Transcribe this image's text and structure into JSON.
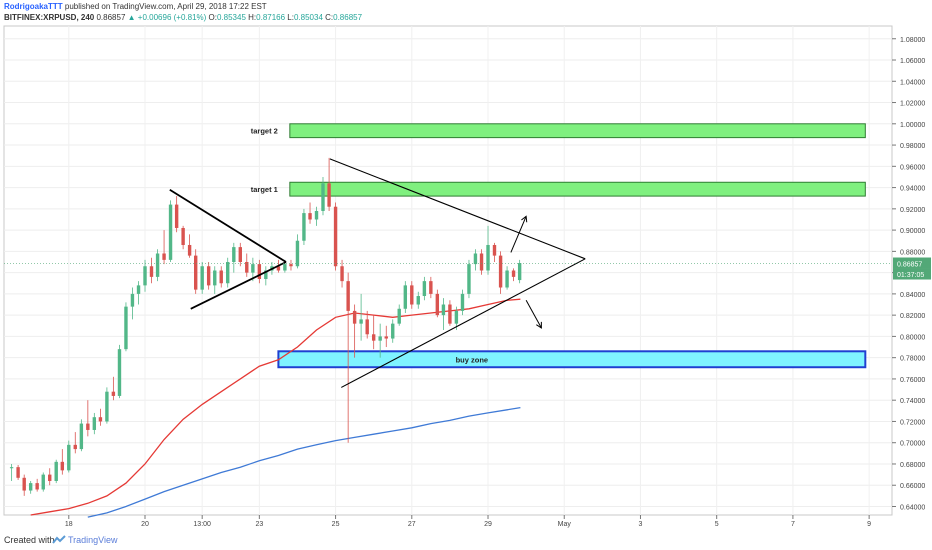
{
  "header": {
    "author": "RodrigoakaTTT",
    "published": "published on TradingView.com, April 29, 2018 17:22 EST",
    "symbol": "BITFINEX:XRPUSD, 240",
    "last": "0.86857",
    "change": "+0.00696 (+0.81%)",
    "ohlc": {
      "o_label": "O:",
      "o": "0.85345",
      "h_label": "H:",
      "h": "0.87166",
      "l_label": "L:",
      "l": "0.85034",
      "c_label": "C:",
      "c": "0.86857"
    }
  },
  "footer": {
    "created_with": "Created with",
    "brand": "TradingView",
    "logo_icon": "tradingview-logo-icon"
  },
  "colors": {
    "up": "#26a69a",
    "down": "#ef5350",
    "up_candle": "#52b788",
    "down_candle": "#d9534f",
    "ma_red": "#e53935",
    "ma_blue": "#3f7ad6",
    "target_fill": "#7ff07f",
    "buy_fill": "#7ff3ff",
    "buy_border": "#1f3fd1",
    "price_badge": "#52a877"
  },
  "chart_data": {
    "type": "candlestick",
    "symbol": "BITFINEX:XRPUSD",
    "timeframe": "240",
    "y_range": [
      0.632,
      1.092
    ],
    "y_ticks": [
      "0.64000",
      "0.66000",
      "0.68000",
      "0.70000",
      "0.72000",
      "0.74000",
      "0.76000",
      "0.78000",
      "0.80000",
      "0.82000",
      "0.84000",
      "0.86000",
      "0.88000",
      "0.90000",
      "0.92000",
      "0.94000",
      "0.96000",
      "0.98000",
      "1.00000",
      "1.02000",
      "1.04000",
      "1.06000",
      "1.08000"
    ],
    "x_range": [
      16.3,
      39.6
    ],
    "x_ticks": [
      {
        "t": 18,
        "label": "18"
      },
      {
        "t": 20,
        "label": "20"
      },
      {
        "t": 21.5,
        "label": "13:00"
      },
      {
        "t": 23,
        "label": "23"
      },
      {
        "t": 25,
        "label": "25"
      },
      {
        "t": 27,
        "label": "27"
      },
      {
        "t": 29,
        "label": "29"
      },
      {
        "t": 31,
        "label": "May"
      },
      {
        "t": 33,
        "label": "3"
      },
      {
        "t": 35,
        "label": "5"
      },
      {
        "t": 37,
        "label": "7"
      },
      {
        "t": 39,
        "label": "9"
      }
    ],
    "last_price_label": "0.86857",
    "countdown_label": "01:37:05",
    "candles": [
      {
        "t": 16.5,
        "o": 0.676,
        "h": 0.68,
        "l": 0.664,
        "c": 0.677
      },
      {
        "t": 16.67,
        "o": 0.677,
        "h": 0.679,
        "l": 0.665,
        "c": 0.667
      },
      {
        "t": 16.83,
        "o": 0.667,
        "h": 0.67,
        "l": 0.65,
        "c": 0.655
      },
      {
        "t": 17.0,
        "o": 0.655,
        "h": 0.664,
        "l": 0.652,
        "c": 0.662
      },
      {
        "t": 17.17,
        "o": 0.662,
        "h": 0.666,
        "l": 0.654,
        "c": 0.656
      },
      {
        "t": 17.33,
        "o": 0.656,
        "h": 0.672,
        "l": 0.654,
        "c": 0.67
      },
      {
        "t": 17.5,
        "o": 0.67,
        "h": 0.676,
        "l": 0.66,
        "c": 0.664
      },
      {
        "t": 17.67,
        "o": 0.664,
        "h": 0.684,
        "l": 0.662,
        "c": 0.682
      },
      {
        "t": 17.83,
        "o": 0.682,
        "h": 0.694,
        "l": 0.67,
        "c": 0.674
      },
      {
        "t": 18.0,
        "o": 0.674,
        "h": 0.702,
        "l": 0.672,
        "c": 0.698
      },
      {
        "t": 18.17,
        "o": 0.698,
        "h": 0.71,
        "l": 0.69,
        "c": 0.694
      },
      {
        "t": 18.33,
        "o": 0.694,
        "h": 0.722,
        "l": 0.692,
        "c": 0.718
      },
      {
        "t": 18.5,
        "o": 0.718,
        "h": 0.74,
        "l": 0.706,
        "c": 0.712
      },
      {
        "t": 18.67,
        "o": 0.712,
        "h": 0.728,
        "l": 0.708,
        "c": 0.724
      },
      {
        "t": 18.83,
        "o": 0.724,
        "h": 0.732,
        "l": 0.716,
        "c": 0.72
      },
      {
        "t": 19.0,
        "o": 0.72,
        "h": 0.752,
        "l": 0.718,
        "c": 0.748
      },
      {
        "t": 19.17,
        "o": 0.748,
        "h": 0.762,
        "l": 0.74,
        "c": 0.744
      },
      {
        "t": 19.33,
        "o": 0.744,
        "h": 0.792,
        "l": 0.742,
        "c": 0.788
      },
      {
        "t": 19.5,
        "o": 0.788,
        "h": 0.832,
        "l": 0.786,
        "c": 0.828
      },
      {
        "t": 19.67,
        "o": 0.828,
        "h": 0.846,
        "l": 0.816,
        "c": 0.84
      },
      {
        "t": 19.83,
        "o": 0.84,
        "h": 0.852,
        "l": 0.83,
        "c": 0.848
      },
      {
        "t": 20.0,
        "o": 0.848,
        "h": 0.872,
        "l": 0.842,
        "c": 0.866
      },
      {
        "t": 20.17,
        "o": 0.866,
        "h": 0.874,
        "l": 0.85,
        "c": 0.856
      },
      {
        "t": 20.33,
        "o": 0.856,
        "h": 0.882,
        "l": 0.852,
        "c": 0.878
      },
      {
        "t": 20.5,
        "o": 0.878,
        "h": 0.9,
        "l": 0.868,
        "c": 0.872
      },
      {
        "t": 20.67,
        "o": 0.872,
        "h": 0.928,
        "l": 0.87,
        "c": 0.924
      },
      {
        "t": 20.83,
        "o": 0.924,
        "h": 0.932,
        "l": 0.898,
        "c": 0.902
      },
      {
        "t": 21.0,
        "o": 0.902,
        "h": 0.904,
        "l": 0.882,
        "c": 0.886
      },
      {
        "t": 21.17,
        "o": 0.886,
        "h": 0.896,
        "l": 0.874,
        "c": 0.876
      },
      {
        "t": 21.33,
        "o": 0.876,
        "h": 0.882,
        "l": 0.84,
        "c": 0.844
      },
      {
        "t": 21.5,
        "o": 0.844,
        "h": 0.87,
        "l": 0.84,
        "c": 0.866
      },
      {
        "t": 21.67,
        "o": 0.866,
        "h": 0.87,
        "l": 0.844,
        "c": 0.848
      },
      {
        "t": 21.83,
        "o": 0.848,
        "h": 0.866,
        "l": 0.84,
        "c": 0.862
      },
      {
        "t": 22.0,
        "o": 0.862,
        "h": 0.866,
        "l": 0.846,
        "c": 0.85
      },
      {
        "t": 22.17,
        "o": 0.85,
        "h": 0.874,
        "l": 0.846,
        "c": 0.87
      },
      {
        "t": 22.33,
        "o": 0.87,
        "h": 0.888,
        "l": 0.86,
        "c": 0.884
      },
      {
        "t": 22.5,
        "o": 0.884,
        "h": 0.888,
        "l": 0.866,
        "c": 0.87
      },
      {
        "t": 22.67,
        "o": 0.87,
        "h": 0.878,
        "l": 0.856,
        "c": 0.86
      },
      {
        "t": 22.83,
        "o": 0.86,
        "h": 0.874,
        "l": 0.852,
        "c": 0.868
      },
      {
        "t": 23.0,
        "o": 0.868,
        "h": 0.872,
        "l": 0.85,
        "c": 0.854
      },
      {
        "t": 23.17,
        "o": 0.854,
        "h": 0.866,
        "l": 0.848,
        "c": 0.862
      },
      {
        "t": 23.33,
        "o": 0.862,
        "h": 0.87,
        "l": 0.858,
        "c": 0.866
      },
      {
        "t": 23.5,
        "o": 0.866,
        "h": 0.872,
        "l": 0.86,
        "c": 0.862
      },
      {
        "t": 23.67,
        "o": 0.862,
        "h": 0.872,
        "l": 0.86,
        "c": 0.868
      },
      {
        "t": 23.83,
        "o": 0.868,
        "h": 0.872,
        "l": 0.862,
        "c": 0.866
      },
      {
        "t": 24.0,
        "o": 0.866,
        "h": 0.896,
        "l": 0.864,
        "c": 0.89
      },
      {
        "t": 24.17,
        "o": 0.89,
        "h": 0.92,
        "l": 0.886,
        "c": 0.916
      },
      {
        "t": 24.33,
        "o": 0.916,
        "h": 0.926,
        "l": 0.906,
        "c": 0.91
      },
      {
        "t": 24.5,
        "o": 0.91,
        "h": 0.922,
        "l": 0.904,
        "c": 0.918
      },
      {
        "t": 24.67,
        "o": 0.918,
        "h": 0.95,
        "l": 0.914,
        "c": 0.944
      },
      {
        "t": 24.83,
        "o": 0.944,
        "h": 0.968,
        "l": 0.918,
        "c": 0.922
      },
      {
        "t": 25.0,
        "o": 0.922,
        "h": 0.926,
        "l": 0.862,
        "c": 0.866
      },
      {
        "t": 25.17,
        "o": 0.866,
        "h": 0.872,
        "l": 0.846,
        "c": 0.852
      },
      {
        "t": 25.33,
        "o": 0.852,
        "h": 0.86,
        "l": 0.7,
        "c": 0.824
      },
      {
        "t": 25.5,
        "o": 0.824,
        "h": 0.83,
        "l": 0.78,
        "c": 0.812
      },
      {
        "t": 25.67,
        "o": 0.812,
        "h": 0.84,
        "l": 0.796,
        "c": 0.816
      },
      {
        "t": 25.83,
        "o": 0.816,
        "h": 0.824,
        "l": 0.798,
        "c": 0.802
      },
      {
        "t": 26.0,
        "o": 0.802,
        "h": 0.82,
        "l": 0.788,
        "c": 0.796
      },
      {
        "t": 26.17,
        "o": 0.796,
        "h": 0.812,
        "l": 0.78,
        "c": 0.8
      },
      {
        "t": 26.33,
        "o": 0.8,
        "h": 0.81,
        "l": 0.79,
        "c": 0.798
      },
      {
        "t": 26.5,
        "o": 0.798,
        "h": 0.816,
        "l": 0.794,
        "c": 0.812
      },
      {
        "t": 26.67,
        "o": 0.812,
        "h": 0.83,
        "l": 0.81,
        "c": 0.826
      },
      {
        "t": 26.83,
        "o": 0.826,
        "h": 0.852,
        "l": 0.822,
        "c": 0.848
      },
      {
        "t": 27.0,
        "o": 0.848,
        "h": 0.852,
        "l": 0.826,
        "c": 0.83
      },
      {
        "t": 27.17,
        "o": 0.83,
        "h": 0.842,
        "l": 0.826,
        "c": 0.838
      },
      {
        "t": 27.33,
        "o": 0.838,
        "h": 0.856,
        "l": 0.834,
        "c": 0.852
      },
      {
        "t": 27.5,
        "o": 0.852,
        "h": 0.856,
        "l": 0.836,
        "c": 0.84
      },
      {
        "t": 27.67,
        "o": 0.84,
        "h": 0.844,
        "l": 0.818,
        "c": 0.82
      },
      {
        "t": 27.83,
        "o": 0.82,
        "h": 0.836,
        "l": 0.806,
        "c": 0.83
      },
      {
        "t": 28.0,
        "o": 0.83,
        "h": 0.834,
        "l": 0.81,
        "c": 0.812
      },
      {
        "t": 28.17,
        "o": 0.812,
        "h": 0.828,
        "l": 0.806,
        "c": 0.824
      },
      {
        "t": 28.33,
        "o": 0.824,
        "h": 0.844,
        "l": 0.82,
        "c": 0.84
      },
      {
        "t": 28.5,
        "o": 0.84,
        "h": 0.872,
        "l": 0.836,
        "c": 0.868
      },
      {
        "t": 28.67,
        "o": 0.868,
        "h": 0.882,
        "l": 0.862,
        "c": 0.878
      },
      {
        "t": 28.83,
        "o": 0.878,
        "h": 0.882,
        "l": 0.858,
        "c": 0.862
      },
      {
        "t": 29.0,
        "o": 0.862,
        "h": 0.904,
        "l": 0.858,
        "c": 0.886
      },
      {
        "t": 29.17,
        "o": 0.886,
        "h": 0.888,
        "l": 0.87,
        "c": 0.876
      },
      {
        "t": 29.33,
        "o": 0.876,
        "h": 0.88,
        "l": 0.84,
        "c": 0.846
      },
      {
        "t": 29.5,
        "o": 0.846,
        "h": 0.866,
        "l": 0.844,
        "c": 0.862
      },
      {
        "t": 29.67,
        "o": 0.862,
        "h": 0.864,
        "l": 0.852,
        "c": 0.856
      },
      {
        "t": 29.83,
        "o": 0.853,
        "h": 0.872,
        "l": 0.85,
        "c": 0.869
      }
    ],
    "moving_averages": [
      {
        "color": "red",
        "points": [
          [
            17.0,
            0.632
          ],
          [
            17.5,
            0.635
          ],
          [
            18.0,
            0.638
          ],
          [
            18.5,
            0.643
          ],
          [
            19.0,
            0.65
          ],
          [
            19.5,
            0.662
          ],
          [
            20.0,
            0.68
          ],
          [
            20.5,
            0.703
          ],
          [
            21.0,
            0.722
          ],
          [
            21.5,
            0.736
          ],
          [
            22.0,
            0.748
          ],
          [
            22.5,
            0.76
          ],
          [
            23.0,
            0.772
          ],
          [
            23.5,
            0.778
          ],
          [
            24.0,
            0.79
          ],
          [
            24.5,
            0.806
          ],
          [
            25.0,
            0.818
          ],
          [
            25.5,
            0.822
          ],
          [
            26.0,
            0.82
          ],
          [
            26.5,
            0.818
          ],
          [
            27.0,
            0.82
          ],
          [
            27.5,
            0.822
          ],
          [
            28.0,
            0.824
          ],
          [
            28.5,
            0.826
          ],
          [
            29.0,
            0.83
          ],
          [
            29.5,
            0.834
          ],
          [
            29.85,
            0.835
          ]
        ]
      },
      {
        "color": "blue",
        "points": [
          [
            18.5,
            0.63
          ],
          [
            19.0,
            0.634
          ],
          [
            19.5,
            0.64
          ],
          [
            20.0,
            0.647
          ],
          [
            20.5,
            0.654
          ],
          [
            21.0,
            0.66
          ],
          [
            21.5,
            0.666
          ],
          [
            22.0,
            0.672
          ],
          [
            22.5,
            0.677
          ],
          [
            23.0,
            0.683
          ],
          [
            23.5,
            0.688
          ],
          [
            24.0,
            0.694
          ],
          [
            24.5,
            0.698
          ],
          [
            25.0,
            0.702
          ],
          [
            25.5,
            0.705
          ],
          [
            26.0,
            0.708
          ],
          [
            26.5,
            0.711
          ],
          [
            27.0,
            0.714
          ],
          [
            27.5,
            0.718
          ],
          [
            28.0,
            0.721
          ],
          [
            28.5,
            0.725
          ],
          [
            29.0,
            0.728
          ],
          [
            29.5,
            0.731
          ],
          [
            29.85,
            0.733
          ]
        ]
      }
    ],
    "annotations": {
      "target_zones": [
        {
          "label": "target 2",
          "t0": 23.8,
          "t1": 38.9,
          "p_low": 0.987,
          "p_high": 1.0
        },
        {
          "label": "target 1",
          "t0": 23.8,
          "t1": 38.9,
          "p_low": 0.932,
          "p_high": 0.945
        }
      ],
      "buy_zone": {
        "label": "buy zone",
        "t0": 23.5,
        "t1": 38.9,
        "p_low": 0.771,
        "p_high": 0.786
      },
      "lines": [
        {
          "role": "left-triangle-upper",
          "points": [
            [
              20.65,
              0.938
            ],
            [
              23.7,
              0.87
            ]
          ]
        },
        {
          "role": "left-triangle-lower",
          "points": [
            [
              21.2,
              0.826
            ],
            [
              23.7,
              0.87
            ]
          ]
        },
        {
          "role": "right-triangle-upper",
          "points": [
            [
              24.85,
              0.967
            ],
            [
              31.55,
              0.873
            ]
          ]
        },
        {
          "role": "right-triangle-lower",
          "points": [
            [
              25.15,
              0.752
            ],
            [
              31.55,
              0.873
            ]
          ]
        }
      ],
      "arrows": [
        {
          "role": "breakout-up-arrow",
          "from": [
            29.6,
            0.879
          ],
          "to": [
            30.0,
            0.913
          ]
        },
        {
          "role": "breakout-down-arrow",
          "from": [
            30.0,
            0.834
          ],
          "to": [
            30.4,
            0.808
          ]
        }
      ]
    }
  }
}
